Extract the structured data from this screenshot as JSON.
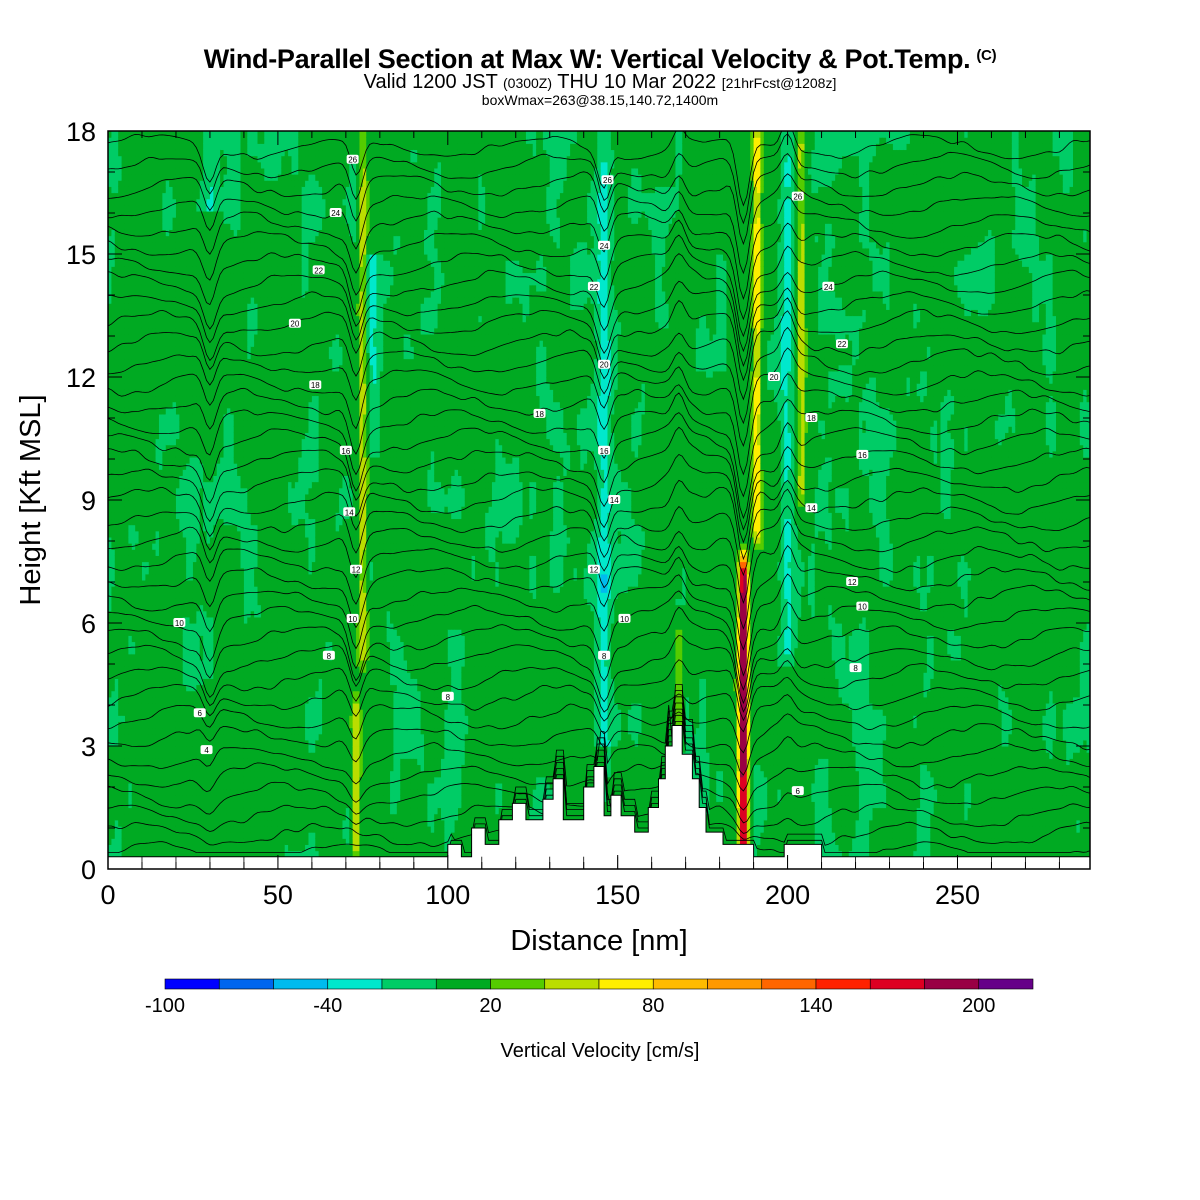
{
  "header": {
    "title": "Wind-Parallel Section at Max W: Vertical Velocity & Pot.Temp.",
    "copyright": "(C)",
    "valid_prefix": "Valid 1200 JST ",
    "valid_z": "(0300Z)",
    "valid_mid": " THU 10 Mar 2022 ",
    "valid_fcst": "[21hrFcst@1208z]",
    "box_info": "boxWmax=263@38.15,140.72,1400m"
  },
  "chart_data": {
    "type": "heatmap",
    "xlabel": "Distance [nm]",
    "ylabel": "Height [Kft MSL]",
    "xlim": [
      0,
      289
    ],
    "ylim": [
      0,
      18
    ],
    "x_ticks": [
      0,
      50,
      100,
      150,
      200,
      250
    ],
    "y_ticks": [
      0,
      3,
      6,
      9,
      12,
      15,
      18
    ],
    "colorbar": {
      "label": "Vertical Velocity [cm/s]",
      "bounds": [
        -100,
        -80,
        -60,
        -40,
        -20,
        0,
        20,
        40,
        60,
        80,
        100,
        120,
        140,
        160,
        180,
        200,
        220
      ],
      "tick_labels": [
        "-100",
        "-40",
        "20",
        "80",
        "140",
        "200"
      ],
      "tick_values": [
        -100,
        -40,
        20,
        80,
        140,
        200
      ],
      "colors": [
        "#0000ff",
        "#0066ee",
        "#00bbee",
        "#00e8cc",
        "#00cc66",
        "#00aa22",
        "#55cc00",
        "#bbdd00",
        "#ffee00",
        "#ffbb00",
        "#ff9900",
        "#ff6600",
        "#ff2200",
        "#dd0022",
        "#990044",
        "#660088"
      ]
    },
    "updrafts": [
      {
        "x": 73,
        "ymin": 0.3,
        "ymax": 4,
        "w": 60
      },
      {
        "x": 75,
        "ymin": 5,
        "ymax": 18,
        "w": 45
      },
      {
        "x": 187,
        "ymin": 0.3,
        "ymax": 7.5,
        "w": 200
      },
      {
        "x": 191,
        "ymin": 8,
        "ymax": 18,
        "w": 70
      },
      {
        "x": 204,
        "ymin": 9,
        "ymax": 18,
        "w": 40
      },
      {
        "x": 168,
        "ymin": 3,
        "ymax": 6,
        "w": 30
      }
    ],
    "downdrafts": [
      {
        "x": 146,
        "ymin": 3,
        "ymax": 18,
        "w": -40
      },
      {
        "x": 200,
        "ymin": 5,
        "ymax": 18,
        "w": -40
      },
      {
        "x": 78,
        "ymin": 10,
        "ymax": 15,
        "w": -30
      },
      {
        "x": 30,
        "ymin": 16,
        "ymax": 18,
        "w": -30
      }
    ],
    "terrain": [
      [
        0,
        0.3
      ],
      [
        100,
        0.3
      ],
      [
        100,
        0.6
      ],
      [
        104,
        0.6
      ],
      [
        104,
        0.3
      ],
      [
        107,
        0.3
      ],
      [
        107,
        1
      ],
      [
        111,
        1
      ],
      [
        111,
        0.6
      ],
      [
        115,
        0.6
      ],
      [
        115,
        1.2
      ],
      [
        119,
        1.2
      ],
      [
        119,
        1.6
      ],
      [
        123,
        1.6
      ],
      [
        123,
        1.2
      ],
      [
        128,
        1.2
      ],
      [
        128,
        1.7
      ],
      [
        131,
        1.7
      ],
      [
        131,
        2.2
      ],
      [
        134,
        2.2
      ],
      [
        134,
        1.2
      ],
      [
        140,
        1.2
      ],
      [
        140,
        2.0
      ],
      [
        143,
        2.0
      ],
      [
        143,
        2.5
      ],
      [
        146,
        2.5
      ],
      [
        146,
        1.3
      ],
      [
        148,
        1.3
      ],
      [
        148,
        1.8
      ],
      [
        151,
        1.8
      ],
      [
        151,
        1.3
      ],
      [
        155,
        1.3
      ],
      [
        155,
        0.9
      ],
      [
        159,
        0.9
      ],
      [
        159,
        1.5
      ],
      [
        162,
        1.5
      ],
      [
        162,
        2.2
      ],
      [
        164,
        2.2
      ],
      [
        164,
        3.0
      ],
      [
        166,
        3.0
      ],
      [
        166,
        3.5
      ],
      [
        169,
        3.5
      ],
      [
        169,
        2.8
      ],
      [
        172,
        2.8
      ],
      [
        172,
        2.2
      ],
      [
        174,
        2.2
      ],
      [
        174,
        1.5
      ],
      [
        176,
        1.5
      ],
      [
        176,
        0.9
      ],
      [
        181,
        0.9
      ],
      [
        181,
        0.6
      ],
      [
        190,
        0.6
      ],
      [
        190,
        0.3
      ],
      [
        199,
        0.3
      ],
      [
        199,
        0.6
      ],
      [
        210,
        0.6
      ],
      [
        210,
        0.3
      ],
      [
        289,
        0.3
      ]
    ],
    "theta_levels": [
      0,
      1,
      2,
      3,
      4,
      5,
      6,
      7,
      8,
      9,
      10,
      11,
      12,
      13,
      14,
      15,
      16,
      17,
      18,
      19,
      20,
      21,
      22,
      23,
      24,
      25,
      26,
      27,
      28,
      29,
      30,
      31,
      32,
      33,
      34,
      35,
      36
    ],
    "contour_labels": [
      {
        "x": 29,
        "y": 2.9,
        "text": "4"
      },
      {
        "x": 27,
        "y": 3.8,
        "text": "6"
      },
      {
        "x": 21,
        "y": 6.0,
        "text": "10"
      },
      {
        "x": 65,
        "y": 5.2,
        "text": "8"
      },
      {
        "x": 72,
        "y": 6.1,
        "text": "10"
      },
      {
        "x": 73,
        "y": 7.3,
        "text": "12"
      },
      {
        "x": 71,
        "y": 8.7,
        "text": "14"
      },
      {
        "x": 70,
        "y": 10.2,
        "text": "16"
      },
      {
        "x": 61,
        "y": 11.8,
        "text": "18"
      },
      {
        "x": 55,
        "y": 13.3,
        "text": "20"
      },
      {
        "x": 62,
        "y": 14.6,
        "text": "22"
      },
      {
        "x": 67,
        "y": 16.0,
        "text": "24"
      },
      {
        "x": 72,
        "y": 17.3,
        "text": "26"
      },
      {
        "x": 100,
        "y": 4.2,
        "text": "8"
      },
      {
        "x": 127,
        "y": 11.1,
        "text": "18"
      },
      {
        "x": 146,
        "y": 5.2,
        "text": "8"
      },
      {
        "x": 152,
        "y": 6.1,
        "text": "10"
      },
      {
        "x": 143,
        "y": 7.3,
        "text": "12"
      },
      {
        "x": 149,
        "y": 9.0,
        "text": "14"
      },
      {
        "x": 146,
        "y": 10.2,
        "text": "16"
      },
      {
        "x": 146,
        "y": 12.3,
        "text": "20"
      },
      {
        "x": 143,
        "y": 14.2,
        "text": "22"
      },
      {
        "x": 146,
        "y": 15.2,
        "text": "24"
      },
      {
        "x": 147,
        "y": 16.8,
        "text": "26"
      },
      {
        "x": 203,
        "y": 1.9,
        "text": "6"
      },
      {
        "x": 220,
        "y": 4.9,
        "text": "8"
      },
      {
        "x": 222,
        "y": 6.4,
        "text": "10"
      },
      {
        "x": 219,
        "y": 7.0,
        "text": "12"
      },
      {
        "x": 207,
        "y": 8.8,
        "text": "14"
      },
      {
        "x": 222,
        "y": 10.1,
        "text": "16"
      },
      {
        "x": 207,
        "y": 11.0,
        "text": "18"
      },
      {
        "x": 196,
        "y": 12.0,
        "text": "20"
      },
      {
        "x": 216,
        "y": 12.8,
        "text": "22"
      },
      {
        "x": 212,
        "y": 14.2,
        "text": "24"
      },
      {
        "x": 203,
        "y": 16.4,
        "text": "26"
      }
    ]
  }
}
